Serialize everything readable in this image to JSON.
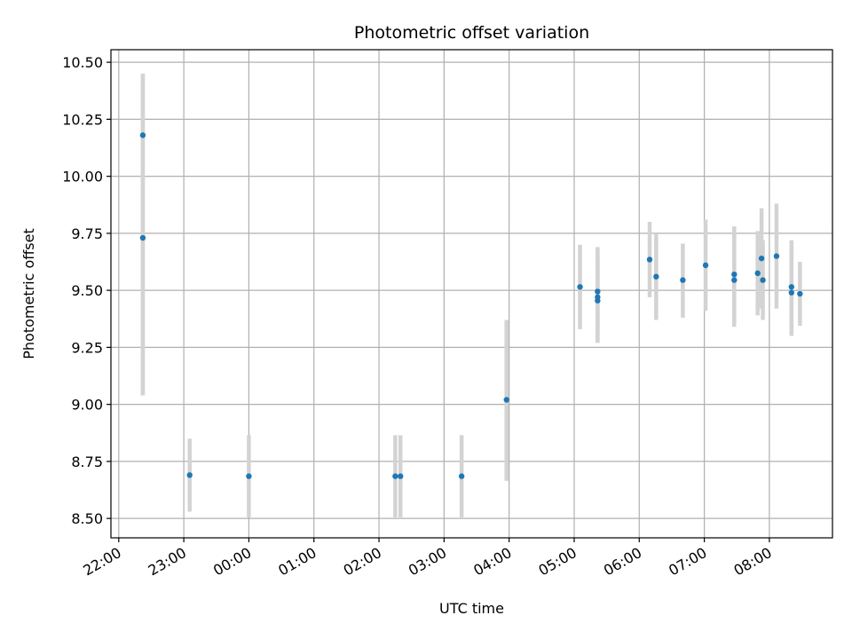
{
  "chart_data": {
    "type": "scatter",
    "title": "Photometric offset variation",
    "xlabel": "UTC time",
    "ylabel": "Photometric offset",
    "x_ticks": [
      {
        "value": 0.0,
        "label": "22:00"
      },
      {
        "value": 1.0,
        "label": "23:00"
      },
      {
        "value": 2.0,
        "label": "00:00"
      },
      {
        "value": 3.0,
        "label": "01:00"
      },
      {
        "value": 4.0,
        "label": "02:00"
      },
      {
        "value": 5.0,
        "label": "03:00"
      },
      {
        "value": 6.0,
        "label": "04:00"
      },
      {
        "value": 7.0,
        "label": "05:00"
      },
      {
        "value": 8.0,
        "label": "06:00"
      },
      {
        "value": 9.0,
        "label": "07:00"
      },
      {
        "value": 10.0,
        "label": "08:00"
      }
    ],
    "y_ticks": [
      {
        "value": 8.5,
        "label": "8.50"
      },
      {
        "value": 8.75,
        "label": "8.75"
      },
      {
        "value": 9.0,
        "label": "9.00"
      },
      {
        "value": 9.25,
        "label": "9.25"
      },
      {
        "value": 9.5,
        "label": "9.50"
      },
      {
        "value": 9.75,
        "label": "9.75"
      },
      {
        "value": 10.0,
        "label": "10.00"
      },
      {
        "value": 10.25,
        "label": "10.25"
      },
      {
        "value": 10.5,
        "label": "10.50"
      }
    ],
    "x_range_hours_after_2200": [
      -0.12,
      10.97
    ],
    "ylim": [
      8.415,
      10.555
    ],
    "grid": true,
    "point_color": "#1f77b4",
    "errorbar_color": "#d3d3d3",
    "points": [
      {
        "x": 0.37,
        "y": 10.18,
        "err_low": 9.04,
        "err_high": 10.45
      },
      {
        "x": 0.37,
        "y": 9.73,
        "err_low": 9.04,
        "err_high": 10.45
      },
      {
        "x": 1.09,
        "y": 8.69,
        "err_low": 8.53,
        "err_high": 8.85
      },
      {
        "x": 2.0,
        "y": 8.685,
        "err_low": 8.505,
        "err_high": 8.865
      },
      {
        "x": 4.25,
        "y": 8.685,
        "err_low": 8.505,
        "err_high": 8.865
      },
      {
        "x": 4.33,
        "y": 8.685,
        "err_low": 8.505,
        "err_high": 8.865
      },
      {
        "x": 5.27,
        "y": 8.685,
        "err_low": 8.505,
        "err_high": 8.865
      },
      {
        "x": 5.96,
        "y": 9.02,
        "err_low": 8.665,
        "err_high": 9.37
      },
      {
        "x": 7.09,
        "y": 9.515,
        "err_low": 9.33,
        "err_high": 9.7
      },
      {
        "x": 7.36,
        "y": 9.495,
        "err_low": 9.305,
        "err_high": 9.69
      },
      {
        "x": 7.36,
        "y": 9.47,
        "err_low": 9.27,
        "err_high": 9.68
      },
      {
        "x": 7.36,
        "y": 9.455,
        "err_low": 9.27,
        "err_high": 9.65
      },
      {
        "x": 8.16,
        "y": 9.635,
        "err_low": 9.47,
        "err_high": 9.8
      },
      {
        "x": 8.26,
        "y": 9.56,
        "err_low": 9.37,
        "err_high": 9.75
      },
      {
        "x": 8.67,
        "y": 9.545,
        "err_low": 9.38,
        "err_high": 9.705
      },
      {
        "x": 9.02,
        "y": 9.61,
        "err_low": 9.41,
        "err_high": 9.81
      },
      {
        "x": 9.46,
        "y": 9.57,
        "err_low": 9.36,
        "err_high": 9.78
      },
      {
        "x": 9.46,
        "y": 9.545,
        "err_low": 9.34,
        "err_high": 9.75
      },
      {
        "x": 9.82,
        "y": 9.575,
        "err_low": 9.39,
        "err_high": 9.76
      },
      {
        "x": 9.88,
        "y": 9.64,
        "err_low": 9.42,
        "err_high": 9.86
      },
      {
        "x": 9.9,
        "y": 9.545,
        "err_low": 9.37,
        "err_high": 9.72
      },
      {
        "x": 10.11,
        "y": 9.65,
        "err_low": 9.42,
        "err_high": 9.88
      },
      {
        "x": 10.34,
        "y": 9.515,
        "err_low": 9.31,
        "err_high": 9.72
      },
      {
        "x": 10.34,
        "y": 9.49,
        "err_low": 9.3,
        "err_high": 9.7
      },
      {
        "x": 10.47,
        "y": 9.485,
        "err_low": 9.345,
        "err_high": 9.625
      }
    ]
  }
}
